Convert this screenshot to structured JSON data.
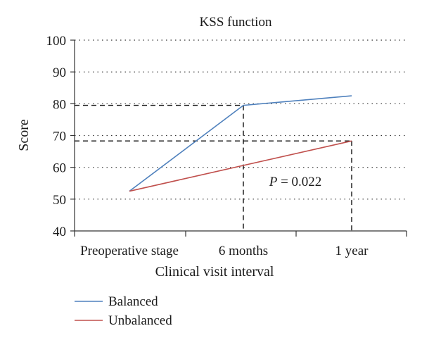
{
  "chart_data": {
    "type": "line",
    "title": "KSS function",
    "xlabel": "Clinical visit interval",
    "ylabel": "Score",
    "categories": [
      "Preoperative stage",
      "6 months",
      "1 year"
    ],
    "ylim": [
      40,
      100
    ],
    "yticks": [
      "40",
      "50",
      "60",
      "70",
      "80",
      "90",
      "100"
    ],
    "grid": "horizontal dotted",
    "legend_position": "bottom-left",
    "series": [
      {
        "name": "Balanced",
        "values": [
          52.5,
          79.5,
          82.5
        ],
        "color": "#4f81bd"
      },
      {
        "name": "Unbalanced",
        "values": [
          52.5,
          null,
          68.3
        ],
        "color": "#c0504d"
      }
    ],
    "reference_lines": [
      {
        "y": 79.5,
        "x_category": "6 months"
      },
      {
        "y": 68.3,
        "x_category": "1 year"
      }
    ],
    "annotation": {
      "italic": "P",
      "rest": " = 0.022"
    }
  }
}
